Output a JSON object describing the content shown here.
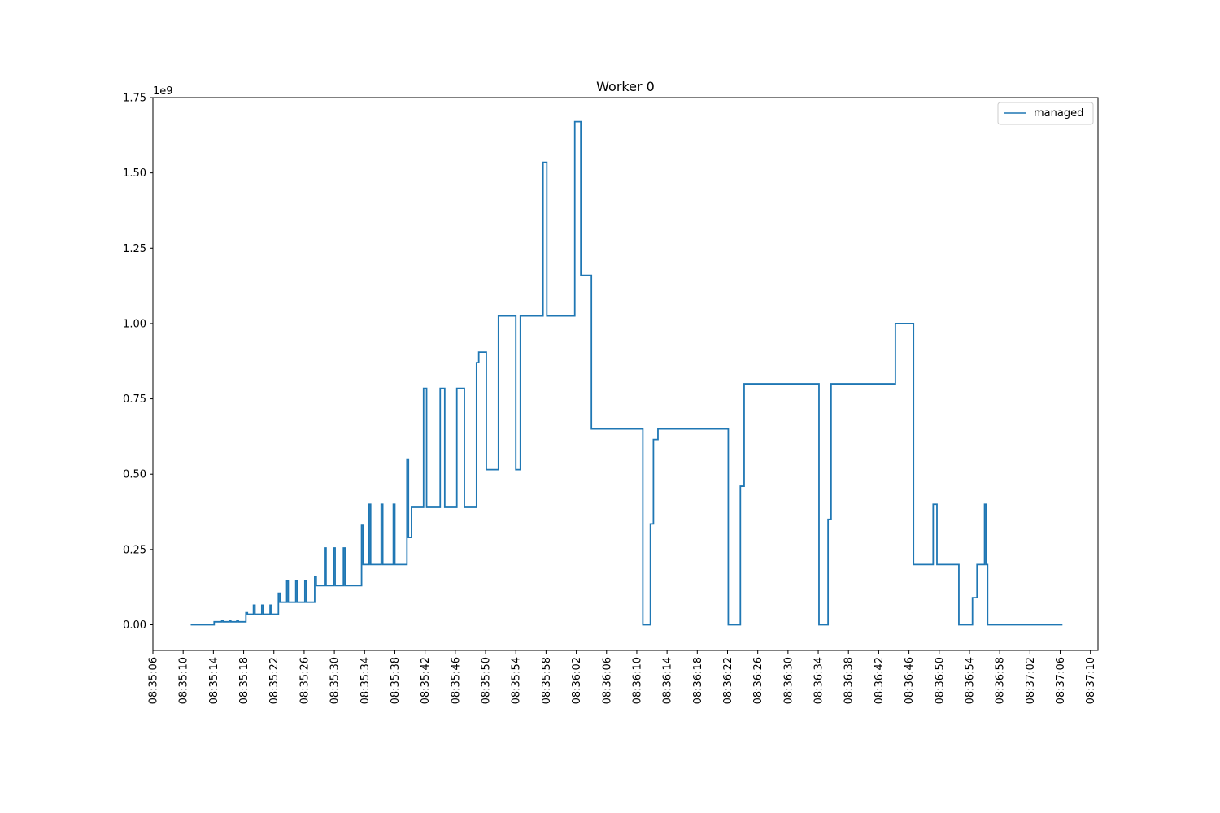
{
  "chart_data": {
    "type": "line",
    "drawstyle": "steps-post",
    "title": "Worker 0",
    "xlabel": "",
    "ylabel": "",
    "y_offset_label": "1e9",
    "x_axis_type": "time",
    "xlim": [
      "08:35:06",
      "08:37:11"
    ],
    "ylim": [
      -0.085,
      1.75
    ],
    "y_multiplier": 1000000000,
    "yticks": [
      0.0,
      0.25,
      0.5,
      0.75,
      1.0,
      1.25,
      1.5,
      1.75
    ],
    "ytick_labels": [
      "0.00",
      "0.25",
      "0.50",
      "0.75",
      "1.00",
      "1.25",
      "1.50",
      "1.75"
    ],
    "xticks": [
      "08:35:06",
      "08:35:10",
      "08:35:14",
      "08:35:18",
      "08:35:22",
      "08:35:26",
      "08:35:30",
      "08:35:34",
      "08:35:38",
      "08:35:42",
      "08:35:46",
      "08:35:50",
      "08:35:54",
      "08:35:58",
      "08:36:02",
      "08:36:06",
      "08:36:10",
      "08:36:14",
      "08:36:18",
      "08:36:22",
      "08:36:26",
      "08:36:30",
      "08:36:34",
      "08:36:38",
      "08:36:42",
      "08:36:46",
      "08:36:50",
      "08:36:54",
      "08:36:58",
      "08:37:02",
      "08:37:06",
      "08:37:10"
    ],
    "grid": false,
    "legend": {
      "position": "top-right",
      "entries": [
        "managed"
      ]
    },
    "series": [
      {
        "name": "managed",
        "color": "#1f77b4",
        "points": [
          [
            "08:35:11.0",
            0.0
          ],
          [
            "08:35:14.1",
            0.01
          ],
          [
            "08:35:15.1",
            0.015
          ],
          [
            "08:35:15.3",
            0.01
          ],
          [
            "08:35:16.1",
            0.015
          ],
          [
            "08:35:16.3",
            0.01
          ],
          [
            "08:35:17.1",
            0.015
          ],
          [
            "08:35:17.3",
            0.01
          ],
          [
            "08:35:18.3",
            0.04
          ],
          [
            "08:35:18.5",
            0.035
          ],
          [
            "08:35:19.3",
            0.065
          ],
          [
            "08:35:19.5",
            0.035
          ],
          [
            "08:35:20.4",
            0.065
          ],
          [
            "08:35:20.6",
            0.035
          ],
          [
            "08:35:21.5",
            0.065
          ],
          [
            "08:35:21.7",
            0.035
          ],
          [
            "08:35:22.6",
            0.105
          ],
          [
            "08:35:22.8",
            0.075
          ],
          [
            "08:35:23.7",
            0.145
          ],
          [
            "08:35:23.9",
            0.075
          ],
          [
            "08:35:24.9",
            0.145
          ],
          [
            "08:35:25.1",
            0.075
          ],
          [
            "08:35:26.1",
            0.145
          ],
          [
            "08:35:26.3",
            0.075
          ],
          [
            "08:35:27.4",
            0.16
          ],
          [
            "08:35:27.6",
            0.13
          ],
          [
            "08:35:28.7",
            0.255
          ],
          [
            "08:35:28.9",
            0.13
          ],
          [
            "08:35:29.9",
            0.255
          ],
          [
            "08:35:30.1",
            0.13
          ],
          [
            "08:35:31.2",
            0.255
          ],
          [
            "08:35:31.4",
            0.13
          ],
          [
            "08:35:33.6",
            0.33
          ],
          [
            "08:35:33.8",
            0.2
          ],
          [
            "08:35:34.6",
            0.4
          ],
          [
            "08:35:34.8",
            0.2
          ],
          [
            "08:35:36.2",
            0.4
          ],
          [
            "08:35:36.4",
            0.2
          ],
          [
            "08:35:37.8",
            0.4
          ],
          [
            "08:35:38.0",
            0.2
          ],
          [
            "08:35:39.6",
            0.55
          ],
          [
            "08:35:39.8",
            0.29
          ],
          [
            "08:35:40.2",
            0.39
          ],
          [
            "08:35:41.8",
            0.785
          ],
          [
            "08:35:42.2",
            0.39
          ],
          [
            "08:35:44.0",
            0.785
          ],
          [
            "08:35:44.6",
            0.39
          ],
          [
            "08:35:46.2",
            0.785
          ],
          [
            "08:35:47.2",
            0.39
          ],
          [
            "08:35:48.8",
            0.87
          ],
          [
            "08:35:49.1",
            0.905
          ],
          [
            "08:35:50.1",
            0.515
          ],
          [
            "08:35:51.7",
            1.025
          ],
          [
            "08:35:54.0",
            0.515
          ],
          [
            "08:35:54.6",
            1.025
          ],
          [
            "08:35:57.6",
            1.535
          ],
          [
            "08:35:58.1",
            1.025
          ],
          [
            "08:36:01.8",
            1.67
          ],
          [
            "08:36:02.6",
            1.16
          ],
          [
            "08:36:04.0",
            0.65
          ],
          [
            "08:36:10.8",
            0.0
          ],
          [
            "08:36:11.8",
            0.335
          ],
          [
            "08:36:12.2",
            0.615
          ],
          [
            "08:36:12.8",
            0.65
          ],
          [
            "08:36:22.1",
            0.0
          ],
          [
            "08:36:23.7",
            0.46
          ],
          [
            "08:36:24.2",
            0.8
          ],
          [
            "08:36:34.1",
            0.0
          ],
          [
            "08:36:35.3",
            0.35
          ],
          [
            "08:36:35.7",
            0.8
          ],
          [
            "08:36:44.2",
            1.0
          ],
          [
            "08:36:46.6",
            0.2
          ],
          [
            "08:36:49.2",
            0.4
          ],
          [
            "08:36:49.7",
            0.2
          ],
          [
            "08:36:52.6",
            0.0
          ],
          [
            "08:36:54.4",
            0.09
          ],
          [
            "08:36:55.0",
            0.2
          ],
          [
            "08:36:56.0",
            0.4
          ],
          [
            "08:36:56.2",
            0.2
          ],
          [
            "08:36:56.4",
            0.0
          ],
          [
            "08:37:06.3",
            0.0
          ]
        ]
      }
    ]
  }
}
